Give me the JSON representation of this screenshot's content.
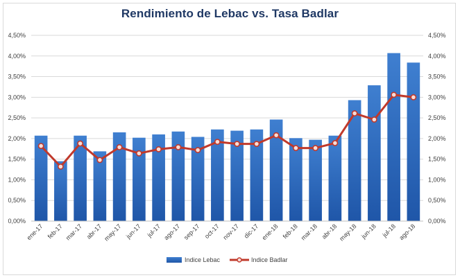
{
  "chart_data": {
    "type": "bar",
    "title": "Rendimiento de Lebac vs. Tasa Badlar",
    "categories": [
      "ene-17",
      "feb-17",
      "mar-17",
      "abr-17",
      "may-17",
      "jun-17",
      "jul-17",
      "ago-17",
      "sep-17",
      "oct-17",
      "nov-17",
      "dic-17",
      "ene-18",
      "feb-18",
      "mar-18",
      "abr-18",
      "may-18",
      "jun-18",
      "jul-18",
      "ago-18"
    ],
    "series": [
      {
        "name": "Indice Lebac",
        "type": "bar",
        "color": "#2e6fc1",
        "values": [
          2.07,
          1.45,
          2.07,
          1.69,
          2.15,
          2.02,
          2.1,
          2.17,
          2.04,
          2.22,
          2.19,
          2.22,
          2.46,
          2.01,
          1.97,
          2.07,
          2.93,
          3.29,
          4.07,
          3.84
        ]
      },
      {
        "name": "Indice Badlar",
        "type": "line",
        "color": "#c0392b",
        "values": [
          1.82,
          1.32,
          1.88,
          1.48,
          1.79,
          1.64,
          1.74,
          1.79,
          1.72,
          1.92,
          1.87,
          1.87,
          2.08,
          1.77,
          1.77,
          1.89,
          2.61,
          2.46,
          3.06,
          3.0
        ]
      }
    ],
    "yticks": [
      "0,00%",
      "0,50%",
      "1,00%",
      "1,50%",
      "2,00%",
      "2,50%",
      "3,00%",
      "3,50%",
      "4,00%",
      "4,50%"
    ],
    "ylim": [
      0,
      4.5
    ],
    "grid": true,
    "legend": "bottom"
  }
}
